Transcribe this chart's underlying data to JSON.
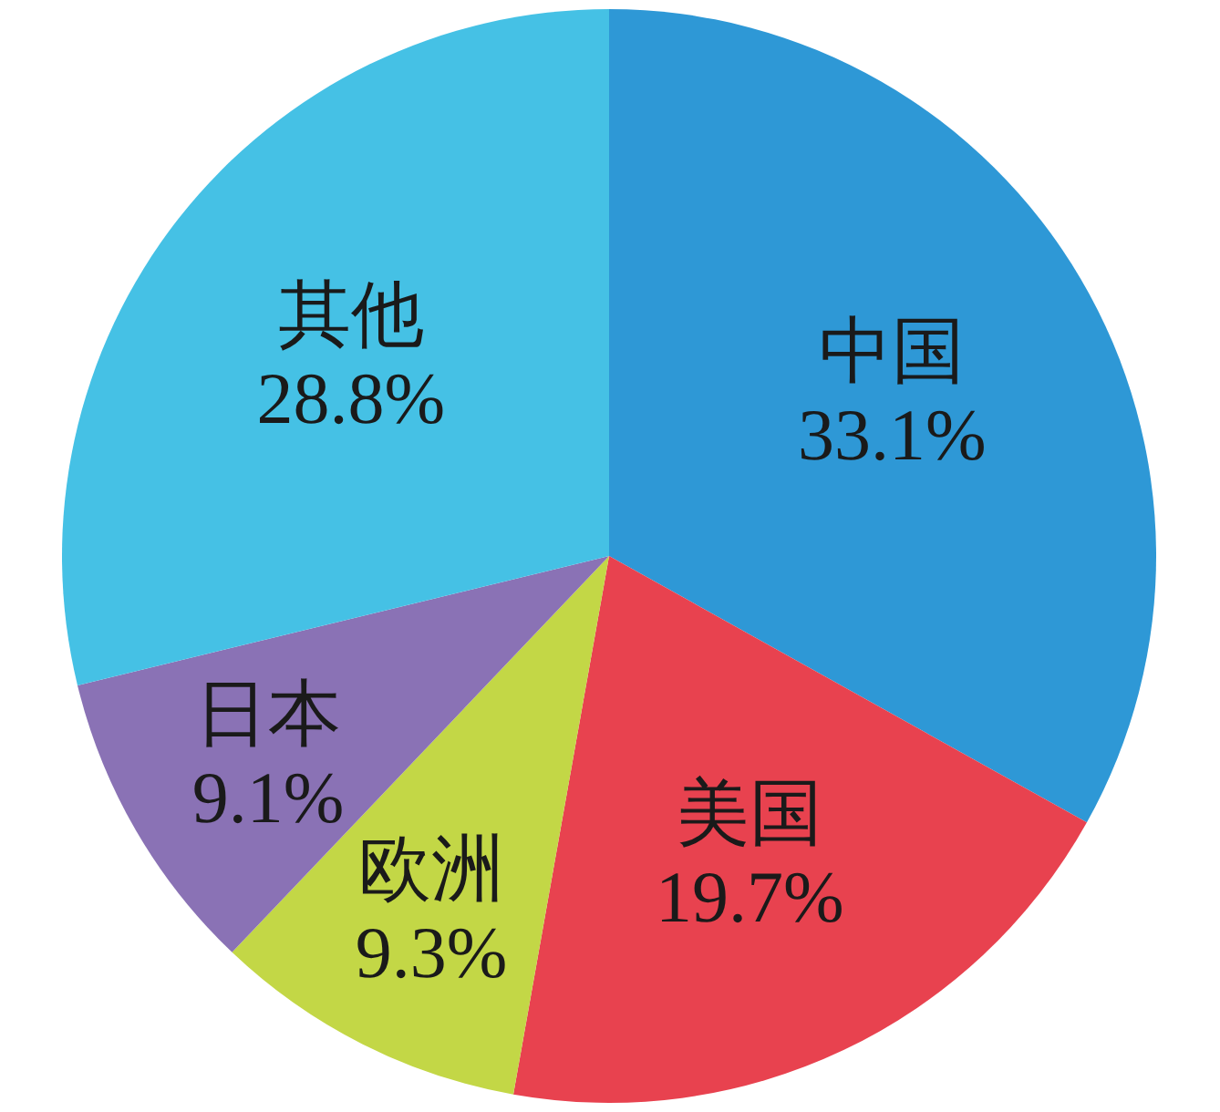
{
  "chart_data": {
    "type": "pie",
    "categories": [
      "中国",
      "美国",
      "欧洲",
      "日本",
      "其他"
    ],
    "values": [
      33.1,
      19.7,
      9.3,
      9.1,
      28.8
    ],
    "colors": [
      "#2e98d6",
      "#e8424f",
      "#c3d746",
      "#8a72b5",
      "#45c1e5"
    ],
    "value_labels": [
      "33.1%",
      "19.7%",
      "9.3%",
      "9.1%",
      "28.8%"
    ]
  }
}
